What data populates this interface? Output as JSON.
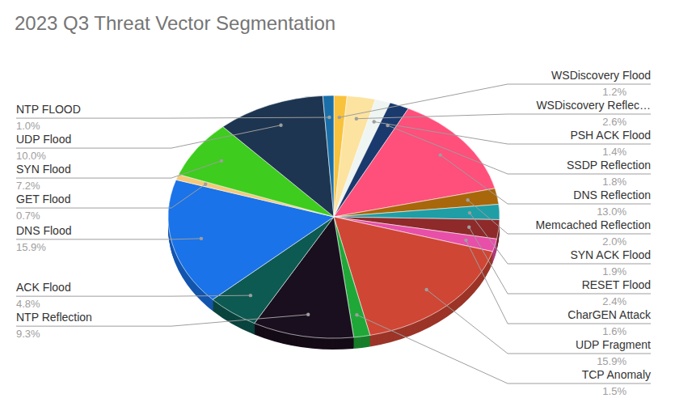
{
  "chart_data": {
    "type": "pie",
    "title": "2023 Q3 Threat Vector Segmentation",
    "categories": [
      "WSDiscovery Flood",
      "WSDiscovery Reflec…",
      "PSH ACK Flood",
      "SSDP Reflection",
      "DNS Reflection",
      "Memcached Reflection",
      "SYN ACK Flood",
      "RESET Flood",
      "CharGEN Attack",
      "UDP Fragment",
      "TCP Anomaly",
      "NTP Reflection",
      "ACK Flood",
      "DNS Flood",
      "GET Flood",
      "SYN Flood",
      "UDP Flood",
      "NTP FLOOD"
    ],
    "values": [
      1.2,
      2.6,
      1.4,
      1.8,
      13.0,
      2.0,
      1.9,
      2.4,
      1.6,
      15.9,
      1.5,
      9.3,
      4.8,
      15.9,
      0.7,
      7.2,
      10.0,
      1.0
    ],
    "value_labels": [
      "1.2%",
      "2.6%",
      "1.4%",
      "1.8%",
      "13.0%",
      "2.0%",
      "1.9%",
      "2.4%",
      "1.6%",
      "15.9%",
      "1.5%",
      "9.3%",
      "4.8%",
      "15.9%",
      "0.7%",
      "7.2%",
      "10.0%",
      "1.0%"
    ],
    "colors": [
      "#f9c23c",
      "#fde3a0",
      "#eef5f2",
      "#1a3a6e",
      "#ff4f7b",
      "#a8670a",
      "#1f9ea6",
      "#8e2a2a",
      "#e84fa8",
      "#cf4635",
      "#1fa838",
      "#1a0f1e",
      "#0d5a52",
      "#1a73e8",
      "#f6c87a",
      "#3ecc1e",
      "#1d3550",
      "#1b6fa8"
    ],
    "data_labels": true
  }
}
